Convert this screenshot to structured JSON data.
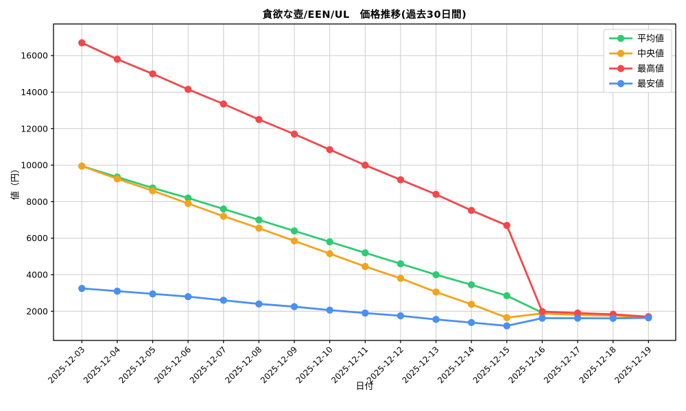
{
  "chart_data": {
    "type": "line",
    "title": "貪欲な壺/EEN/UL　価格推移(過去30日間)",
    "xlabel": "日付",
    "ylabel": "値（円）",
    "x": [
      "2025-12-03",
      "2025-12-04",
      "2025-12-05",
      "2025-12-06",
      "2025-12-07",
      "2025-12-08",
      "2025-12-09",
      "2025-12-10",
      "2025-12-11",
      "2025-12-12",
      "2025-12-13",
      "2025-12-14",
      "2025-12-15",
      "2025-12-16",
      "2025-12-17",
      "2025-12-18",
      "2025-12-19"
    ],
    "series": [
      {
        "name": "平均値",
        "color": "#2ecc71",
        "values": [
          9950,
          9350,
          8750,
          8200,
          7600,
          7000,
          6400,
          5800,
          5200,
          4600,
          4000,
          3450,
          2850,
          1920,
          1830,
          1780,
          1680
        ]
      },
      {
        "name": "中央値",
        "color": "#f5a31b",
        "values": [
          9950,
          9250,
          8600,
          7900,
          7200,
          6550,
          5850,
          5150,
          4450,
          3800,
          3050,
          2380,
          1650,
          1880,
          1800,
          1760,
          1670
        ]
      },
      {
        "name": "最高値",
        "color": "#f4464b",
        "values": [
          16700,
          15800,
          15000,
          14150,
          13350,
          12500,
          11700,
          10850,
          10000,
          9200,
          8400,
          7520,
          6700,
          1980,
          1900,
          1830,
          1700
        ]
      },
      {
        "name": "最安値",
        "color": "#4a90f2",
        "values": [
          3250,
          3100,
          2950,
          2800,
          2600,
          2400,
          2250,
          2060,
          1900,
          1750,
          1550,
          1380,
          1200,
          1620,
          1620,
          1610,
          1640
        ]
      }
    ],
    "yticks": [
      2000,
      4000,
      6000,
      8000,
      10000,
      12000,
      14000,
      16000
    ],
    "ylim": [
      400,
      17730
    ],
    "grid": true,
    "legend_position": "upper right",
    "colors": {
      "grid": "#cccccc",
      "spine": "#000000",
      "background": "#ffffff",
      "legend_border": "#cccccc"
    }
  }
}
